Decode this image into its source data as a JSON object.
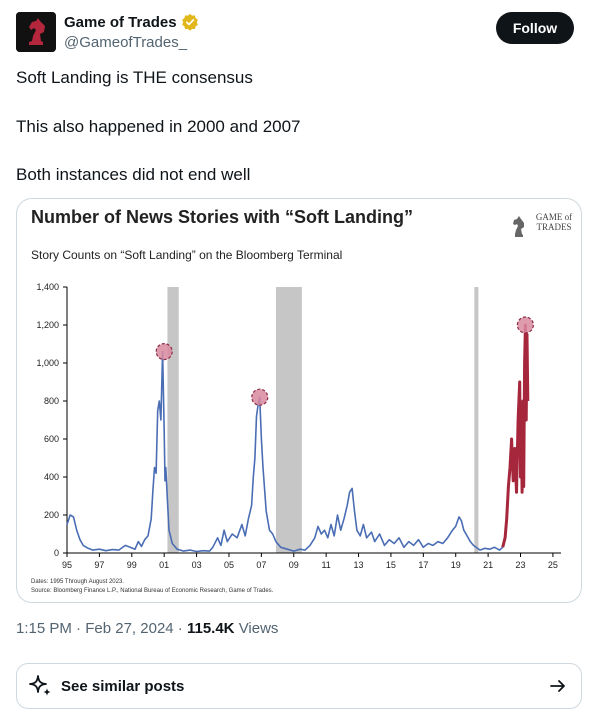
{
  "author": {
    "name": "Game of Trades",
    "handle": "@GameofTrades_",
    "verified": true
  },
  "follow_label": "Follow",
  "tweet_lines": [
    "Soft Landing is THE consensus",
    "This also happened in 2000 and 2007",
    "Both instances did not end well"
  ],
  "meta": {
    "time": "1:15 PM",
    "date": "Feb 27, 2024",
    "views_count": "115.4K",
    "views_label": "Views"
  },
  "similar_label": "See similar posts",
  "colors": {
    "accent": "#0f1419",
    "verified_gold": "#e2b719",
    "series_blue": "#4a6db4",
    "series_red": "#a6263c",
    "recession_gray": "#c6c6c6"
  },
  "chart_data": {
    "type": "line",
    "title": "Number of News Stories with “Soft Landing”",
    "subtitle": "Story Counts on “Soft Landing” on the Bloomberg Terminal",
    "logo_text": [
      "GAME of",
      "TRADES"
    ],
    "footnotes": [
      "Dates: 1995 Through August 2023.",
      "Source: Bloomberg Finance L.P., National Bureau of Economic Research, Game of Trades."
    ],
    "ylim": [
      0,
      1400
    ],
    "yticks": [
      0,
      200,
      400,
      600,
      800,
      1000,
      1200,
      1400
    ],
    "ytick_labels": [
      "0",
      "200",
      "400",
      "600",
      "800",
      "1,000",
      "1,200",
      "1,400"
    ],
    "xlim": [
      1995,
      2025.5
    ],
    "xticks": [
      1995,
      1997,
      1999,
      2001,
      2003,
      2005,
      2007,
      2009,
      2011,
      2013,
      2015,
      2017,
      2019,
      2021,
      2023,
      2025
    ],
    "xtick_labels": [
      "95",
      "97",
      "99",
      "01",
      "03",
      "05",
      "07",
      "09",
      "11",
      "13",
      "15",
      "17",
      "19",
      "21",
      "23",
      "25"
    ],
    "recessions": [
      [
        2001.2,
        2001.9
      ],
      [
        2007.9,
        2009.5
      ],
      [
        2020.15,
        2020.4
      ]
    ],
    "highlight_points": [
      [
        2001.0,
        1060
      ],
      [
        2006.9,
        820
      ],
      [
        2023.3,
        1200
      ]
    ],
    "series": [
      {
        "color": "blue",
        "points": [
          [
            1995.0,
            150
          ],
          [
            1995.2,
            200
          ],
          [
            1995.4,
            190
          ],
          [
            1995.6,
            120
          ],
          [
            1995.8,
            70
          ],
          [
            1996.0,
            40
          ],
          [
            1996.3,
            25
          ],
          [
            1996.6,
            15
          ],
          [
            1997.0,
            20
          ],
          [
            1997.4,
            12
          ],
          [
            1997.8,
            18
          ],
          [
            1998.2,
            15
          ],
          [
            1998.6,
            40
          ],
          [
            1998.9,
            30
          ],
          [
            1999.2,
            20
          ],
          [
            1999.4,
            60
          ],
          [
            1999.6,
            35
          ],
          [
            1999.8,
            70
          ],
          [
            2000.0,
            90
          ],
          [
            2000.2,
            180
          ],
          [
            2000.3,
            320
          ],
          [
            2000.4,
            450
          ],
          [
            2000.5,
            420
          ],
          [
            2000.6,
            750
          ],
          [
            2000.7,
            800
          ],
          [
            2000.8,
            700
          ],
          [
            2000.9,
            1060
          ],
          [
            2001.0,
            640
          ],
          [
            2001.05,
            380
          ],
          [
            2001.1,
            450
          ],
          [
            2001.2,
            280
          ],
          [
            2001.3,
            120
          ],
          [
            2001.5,
            50
          ],
          [
            2001.8,
            20
          ],
          [
            2002.2,
            10
          ],
          [
            2002.6,
            15
          ],
          [
            2003.0,
            8
          ],
          [
            2003.4,
            12
          ],
          [
            2003.8,
            10
          ],
          [
            2004.0,
            30
          ],
          [
            2004.3,
            80
          ],
          [
            2004.5,
            40
          ],
          [
            2004.7,
            120
          ],
          [
            2004.9,
            60
          ],
          [
            2005.2,
            100
          ],
          [
            2005.5,
            80
          ],
          [
            2005.8,
            150
          ],
          [
            2006.0,
            90
          ],
          [
            2006.2,
            180
          ],
          [
            2006.4,
            250
          ],
          [
            2006.5,
            400
          ],
          [
            2006.6,
            500
          ],
          [
            2006.7,
            720
          ],
          [
            2006.8,
            780
          ],
          [
            2006.9,
            820
          ],
          [
            2007.0,
            600
          ],
          [
            2007.1,
            450
          ],
          [
            2007.3,
            220
          ],
          [
            2007.5,
            120
          ],
          [
            2007.7,
            100
          ],
          [
            2007.9,
            60
          ],
          [
            2008.2,
            30
          ],
          [
            2008.6,
            20
          ],
          [
            2009.0,
            10
          ],
          [
            2009.4,
            20
          ],
          [
            2009.7,
            15
          ],
          [
            2010.0,
            40
          ],
          [
            2010.3,
            80
          ],
          [
            2010.5,
            140
          ],
          [
            2010.7,
            100
          ],
          [
            2010.9,
            120
          ],
          [
            2011.1,
            80
          ],
          [
            2011.3,
            150
          ],
          [
            2011.5,
            90
          ],
          [
            2011.7,
            200
          ],
          [
            2011.9,
            120
          ],
          [
            2012.1,
            180
          ],
          [
            2012.3,
            250
          ],
          [
            2012.45,
            320
          ],
          [
            2012.6,
            340
          ],
          [
            2012.75,
            220
          ],
          [
            2012.9,
            120
          ],
          [
            2013.1,
            90
          ],
          [
            2013.3,
            150
          ],
          [
            2013.5,
            80
          ],
          [
            2013.8,
            110
          ],
          [
            2014.0,
            60
          ],
          [
            2014.3,
            100
          ],
          [
            2014.6,
            40
          ],
          [
            2014.9,
            70
          ],
          [
            2015.2,
            50
          ],
          [
            2015.5,
            80
          ],
          [
            2015.8,
            30
          ],
          [
            2016.1,
            60
          ],
          [
            2016.4,
            40
          ],
          [
            2016.7,
            70
          ],
          [
            2017.0,
            30
          ],
          [
            2017.3,
            50
          ],
          [
            2017.6,
            40
          ],
          [
            2017.9,
            60
          ],
          [
            2018.2,
            50
          ],
          [
            2018.5,
            80
          ],
          [
            2018.8,
            120
          ],
          [
            2019.0,
            140
          ],
          [
            2019.2,
            190
          ],
          [
            2019.35,
            170
          ],
          [
            2019.5,
            120
          ],
          [
            2019.7,
            90
          ],
          [
            2019.9,
            60
          ],
          [
            2020.1,
            40
          ],
          [
            2020.5,
            15
          ],
          [
            2020.8,
            25
          ],
          [
            2021.1,
            20
          ],
          [
            2021.4,
            30
          ],
          [
            2021.7,
            15
          ],
          [
            2021.9,
            30
          ]
        ]
      },
      {
        "color": "red",
        "points": [
          [
            2021.9,
            30
          ],
          [
            2022.05,
            80
          ],
          [
            2022.15,
            180
          ],
          [
            2022.25,
            350
          ],
          [
            2022.35,
            450
          ],
          [
            2022.45,
            600
          ],
          [
            2022.55,
            380
          ],
          [
            2022.65,
            550
          ],
          [
            2022.75,
            320
          ],
          [
            2022.85,
            700
          ],
          [
            2022.95,
            900
          ],
          [
            2023.0,
            400
          ],
          [
            2023.05,
            650
          ],
          [
            2023.1,
            320
          ],
          [
            2023.15,
            800
          ],
          [
            2023.2,
            350
          ],
          [
            2023.25,
            1000
          ],
          [
            2023.3,
            1200
          ],
          [
            2023.35,
            700
          ],
          [
            2023.4,
            1150
          ],
          [
            2023.45,
            800
          ]
        ]
      }
    ]
  }
}
